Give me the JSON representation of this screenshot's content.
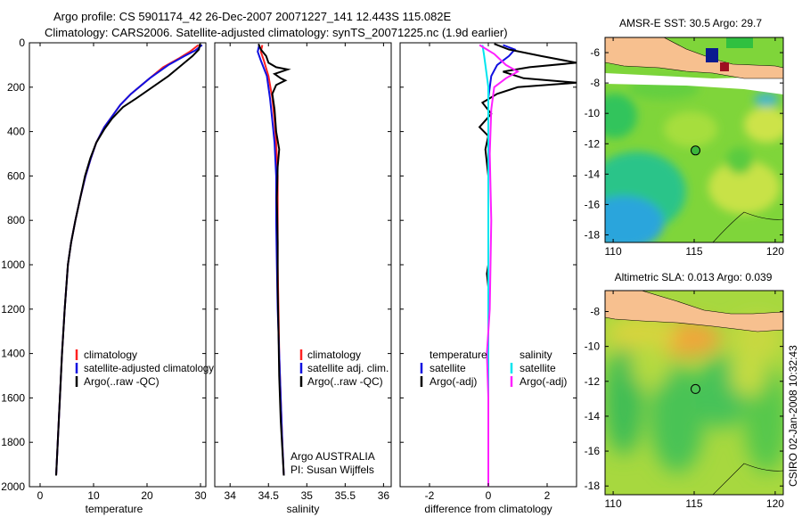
{
  "title_line1": "Argo profile: CS 5901174_42 26-Dec-2007 20071227_141 12.443S 115.082E",
  "title_line2": "Climatology: CARS2006. Satellite-adjusted climatology: synTS_20071225.nc (1.9d earlier)",
  "footer_stamp": "CSIRO 02-Jan-2008 10:32:43",
  "colors": {
    "red": "#ff2020",
    "blue": "#1010e0",
    "black": "#000000",
    "cyan": "#00e5ee",
    "magenta": "#ff20ff",
    "land": "#f7c08f"
  },
  "chart_data": [
    {
      "type": "line",
      "id": "temperature",
      "xlabel": "temperature",
      "xlim": [
        -2,
        31
      ],
      "ylim": [
        0,
        2000
      ],
      "xticks": [
        0,
        10,
        20,
        30
      ],
      "yticks": [
        0,
        200,
        400,
        600,
        800,
        1000,
        1200,
        1400,
        1600,
        1800,
        2000
      ],
      "legend": [
        "climatology",
        "satellite-adjusted climatology",
        "Argo(..raw -QC)"
      ],
      "series": [
        {
          "name": "climatology",
          "color": "red",
          "points": [
            [
              29.6,
              10
            ],
            [
              28,
              40
            ],
            [
              26,
              70
            ],
            [
              23,
              110
            ],
            [
              20,
              170
            ],
            [
              17,
              230
            ],
            [
              15,
              280
            ],
            [
              13.5,
              330
            ],
            [
              12,
              380
            ],
            [
              10.5,
              450
            ],
            [
              9.5,
              520
            ],
            [
              8.5,
              600
            ],
            [
              7.5,
              700
            ],
            [
              6.6,
              800
            ],
            [
              5.8,
              900
            ],
            [
              5.2,
              1000
            ],
            [
              4.6,
              1200
            ],
            [
              4.1,
              1400
            ],
            [
              3.7,
              1600
            ],
            [
              3.3,
              1800
            ],
            [
              3.0,
              1950
            ]
          ]
        },
        {
          "name": "satellite-adjusted climatology",
          "color": "blue",
          "points": [
            [
              30.3,
              10
            ],
            [
              29,
              35
            ],
            [
              27,
              60
            ],
            [
              24,
              100
            ],
            [
              20.5,
              160
            ],
            [
              17,
              230
            ],
            [
              15,
              280
            ],
            [
              13.5,
              330
            ],
            [
              12,
              380
            ],
            [
              10.5,
              450
            ],
            [
              9.5,
              520
            ],
            [
              8.5,
              600
            ],
            [
              7.5,
              700
            ],
            [
              6.6,
              800
            ],
            [
              5.8,
              900
            ],
            [
              5.2,
              1000
            ],
            [
              4.6,
              1200
            ],
            [
              4.1,
              1400
            ],
            [
              3.7,
              1600
            ],
            [
              3.3,
              1800
            ],
            [
              3.0,
              1950
            ]
          ]
        },
        {
          "name": "Argo(..raw -QC)",
          "color": "black",
          "points": [
            [
              29.9,
              5
            ],
            [
              29.7,
              30
            ],
            [
              28.5,
              60
            ],
            [
              26.5,
              100
            ],
            [
              24,
              150
            ],
            [
              21,
              200
            ],
            [
              18,
              250
            ],
            [
              15.5,
              290
            ],
            [
              13.5,
              340
            ],
            [
              12,
              390
            ],
            [
              10.5,
              450
            ],
            [
              9.4,
              520
            ],
            [
              8.4,
              600
            ],
            [
              7.5,
              700
            ],
            [
              6.6,
              800
            ],
            [
              5.8,
              900
            ],
            [
              5.2,
              1000
            ],
            [
              4.6,
              1200
            ],
            [
              4.1,
              1400
            ],
            [
              3.7,
              1600
            ],
            [
              3.3,
              1800
            ],
            [
              3.0,
              1950
            ]
          ]
        }
      ]
    },
    {
      "type": "line",
      "id": "salinity",
      "xlabel": "salinity",
      "xlim": [
        33.8,
        36.1
      ],
      "ylim": [
        0,
        2000
      ],
      "xticks": [
        34,
        34.5,
        35,
        35.5,
        36
      ],
      "xticklabels": [
        "34",
        "34.5",
        "35",
        "35.5",
        "36"
      ],
      "legend": [
        "climatology",
        "satellite adj. clim.",
        "Argo(..raw -QC)"
      ],
      "annotation": [
        "Argo AUSTRALIA",
        "PI: Susan Wijffels"
      ],
      "series": [
        {
          "name": "climatology",
          "color": "red",
          "points": [
            [
              34.42,
              10
            ],
            [
              34.4,
              40
            ],
            [
              34.44,
              80
            ],
            [
              34.5,
              150
            ],
            [
              34.55,
              250
            ],
            [
              34.58,
              350
            ],
            [
              34.6,
              450
            ],
            [
              34.62,
              600
            ],
            [
              34.62,
              800
            ],
            [
              34.62,
              1000
            ],
            [
              34.63,
              1200
            ],
            [
              34.64,
              1400
            ],
            [
              34.66,
              1600
            ],
            [
              34.68,
              1800
            ],
            [
              34.7,
              1950
            ]
          ]
        },
        {
          "name": "satellite adj. clim.",
          "color": "blue",
          "points": [
            [
              34.38,
              10
            ],
            [
              34.36,
              40
            ],
            [
              34.4,
              80
            ],
            [
              34.48,
              150
            ],
            [
              34.52,
              250
            ],
            [
              34.55,
              350
            ],
            [
              34.58,
              450
            ],
            [
              34.6,
              600
            ],
            [
              34.6,
              800
            ],
            [
              34.61,
              1000
            ],
            [
              34.62,
              1200
            ],
            [
              34.64,
              1400
            ],
            [
              34.66,
              1600
            ],
            [
              34.68,
              1800
            ],
            [
              34.7,
              1950
            ]
          ]
        },
        {
          "name": "Argo(..raw -QC)",
          "color": "black",
          "points": [
            [
              34.37,
              5
            ],
            [
              34.4,
              30
            ],
            [
              34.47,
              60
            ],
            [
              34.5,
              90
            ],
            [
              34.6,
              110
            ],
            [
              34.75,
              120
            ],
            [
              34.58,
              140
            ],
            [
              34.66,
              160
            ],
            [
              34.72,
              170
            ],
            [
              34.6,
              190
            ],
            [
              34.55,
              230
            ],
            [
              34.58,
              300
            ],
            [
              34.6,
              400
            ],
            [
              34.64,
              480
            ],
            [
              34.62,
              560
            ],
            [
              34.61,
              700
            ],
            [
              34.62,
              900
            ],
            [
              34.62,
              1100
            ],
            [
              34.63,
              1300
            ],
            [
              34.64,
              1500
            ],
            [
              34.66,
              1700
            ],
            [
              34.7,
              1950
            ]
          ]
        }
      ]
    },
    {
      "type": "line",
      "id": "difference",
      "xlabel": "difference from climatology",
      "xlim": [
        -3,
        3
      ],
      "ylim": [
        0,
        2000
      ],
      "xticks": [
        -2,
        0,
        2
      ],
      "legend_left": [
        "temperature",
        "satellite",
        "Argo(-adj)"
      ],
      "legend_right": [
        "salinity",
        "satellite",
        "Argo(-adj)"
      ],
      "series": [
        {
          "name": "temperature satellite",
          "color": "blue",
          "points": [
            [
              0.5,
              10
            ],
            [
              0.9,
              30
            ],
            [
              0.7,
              60
            ],
            [
              0.3,
              100
            ],
            [
              0.1,
              150
            ],
            [
              0,
              250
            ],
            [
              0,
              400
            ],
            [
              0,
              1000
            ],
            [
              0,
              2000
            ]
          ]
        },
        {
          "name": "temperature Argo(-adj)",
          "color": "black",
          "points": [
            [
              0.2,
              5
            ],
            [
              0.7,
              30
            ],
            [
              1.8,
              60
            ],
            [
              3.0,
              90
            ],
            [
              1.4,
              110
            ],
            [
              0.5,
              130
            ],
            [
              1.2,
              160
            ],
            [
              3.0,
              180
            ],
            [
              1.0,
              200
            ],
            [
              0.3,
              230
            ],
            [
              -0.2,
              270
            ],
            [
              0.1,
              320
            ],
            [
              -0.3,
              380
            ],
            [
              0,
              420
            ],
            [
              -0.1,
              480
            ],
            [
              0,
              600
            ],
            [
              0,
              1000
            ],
            [
              -0.05,
              1040
            ],
            [
              0,
              1100
            ],
            [
              0,
              2000
            ]
          ]
        },
        {
          "name": "salinity satellite",
          "color": "cyan",
          "points": [
            [
              -0.2,
              10
            ],
            [
              -0.15,
              50
            ],
            [
              -0.1,
              100
            ],
            [
              0,
              200
            ],
            [
              0,
              1000
            ],
            [
              0,
              2000
            ]
          ]
        },
        {
          "name": "salinity Argo(-adj)",
          "color": "magenta",
          "points": [
            [
              -0.3,
              10
            ],
            [
              0.2,
              50
            ],
            [
              0.6,
              100
            ],
            [
              1.0,
              130
            ],
            [
              0.6,
              160
            ],
            [
              0.2,
              200
            ],
            [
              0.1,
              300
            ],
            [
              0.05,
              500
            ],
            [
              0.1,
              800
            ],
            [
              0.05,
              1200
            ],
            [
              -0.05,
              1400
            ],
            [
              0,
              1600
            ],
            [
              0,
              2000
            ]
          ]
        }
      ]
    },
    {
      "type": "heatmap",
      "id": "sst_map",
      "title": "AMSR-E SST: 30.5 Argo: 29.7",
      "xlim": [
        109.5,
        120.5
      ],
      "ylim": [
        -18.5,
        -5.0
      ],
      "xticks": [
        110,
        115,
        120
      ],
      "yticks": [
        -6,
        -8,
        -10,
        -12,
        -14,
        -16,
        -18
      ],
      "argo_location": {
        "lon": 115.082,
        "lat": -12.443
      }
    },
    {
      "type": "heatmap",
      "id": "sla_map",
      "title": "Altimetric SLA: 0.013 Argo: 0.039",
      "xlim": [
        109.5,
        120.5
      ],
      "ylim": [
        -18.5,
        -6.8
      ],
      "xticks": [
        110,
        115,
        120
      ],
      "yticks": [
        -8,
        -10,
        -12,
        -14,
        -16,
        -18
      ],
      "argo_location": {
        "lon": 115.082,
        "lat": -12.443
      }
    }
  ]
}
